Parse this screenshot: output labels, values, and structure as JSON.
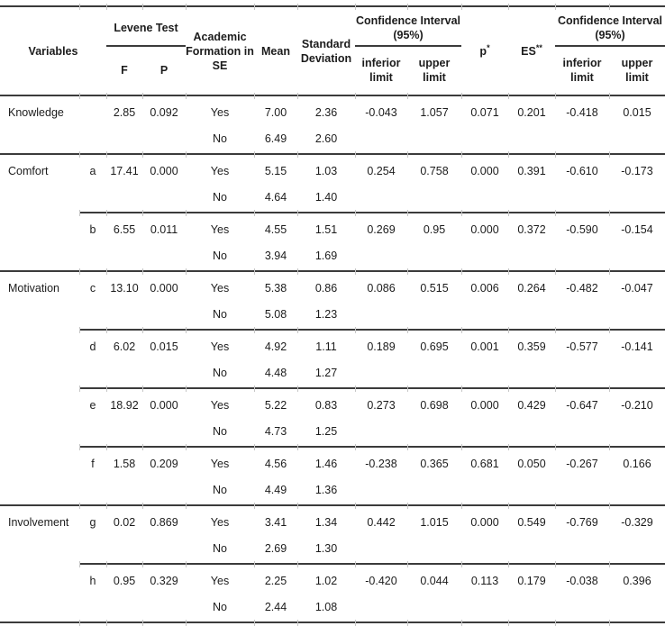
{
  "table": {
    "title": "statistical comparison table",
    "colors": {
      "rule_line": "#3b3b3b",
      "tick_line": "#c6c6c6",
      "text": "#1c1c1c",
      "background": "#ffffff"
    },
    "header": {
      "variables": "Variables",
      "levene_test": "Levene Test",
      "levene_f": "F",
      "levene_p": "P",
      "academic_formation": "Academic Formation in SE",
      "mean": "Mean",
      "standard_deviation": "Standard Deviation",
      "confidence_interval": "Confidence Interval (95%)",
      "inferior_limit": "inferior limit",
      "upper_limit": "upper limit",
      "p_label": "p",
      "p_sup": "*",
      "es_label": "ES",
      "es_sup": "**"
    },
    "groups": [
      {
        "separator": "full",
        "variable": "Knowledge",
        "letter": "",
        "levene_f": "2.85",
        "levene_p": "0.092",
        "ci95_1": [
          "-0.043",
          "1.057"
        ],
        "p": "0.071",
        "es": "0.201",
        "ci95_2": [
          "-0.418",
          "0.015"
        ],
        "rows": [
          {
            "formation": "Yes",
            "mean": "7.00",
            "sd": "2.36"
          },
          {
            "formation": "No",
            "mean": "6.49",
            "sd": "2.60"
          }
        ]
      },
      {
        "separator": "full",
        "variable": "Comfort",
        "letter": "a",
        "levene_f": "17.41",
        "levene_p": "0.000",
        "ci95_1": [
          "0.254",
          "0.758"
        ],
        "p": "0.000",
        "es": "0.391",
        "ci95_2": [
          "-0.610",
          "-0.173"
        ],
        "rows": [
          {
            "formation": "Yes",
            "mean": "5.15",
            "sd": "1.03"
          },
          {
            "formation": "No",
            "mean": "4.64",
            "sd": "1.40"
          }
        ]
      },
      {
        "separator": "partial",
        "variable": "",
        "letter": "b",
        "levene_f": "6.55",
        "levene_p": "0.011",
        "ci95_1": [
          "0.269",
          "0.95"
        ],
        "p": "0.000",
        "es": "0.372",
        "ci95_2": [
          "-0.590",
          "-0.154"
        ],
        "rows": [
          {
            "formation": "Yes",
            "mean": "4.55",
            "sd": "1.51"
          },
          {
            "formation": "No",
            "mean": "3.94",
            "sd": "1.69"
          }
        ]
      },
      {
        "separator": "full",
        "variable": "Motivation",
        "letter": "c",
        "levene_f": "13.10",
        "levene_p": "0.000",
        "ci95_1": [
          "0.086",
          "0.515"
        ],
        "p": "0.006",
        "es": "0.264",
        "ci95_2": [
          "-0.482",
          "-0.047"
        ],
        "rows": [
          {
            "formation": "Yes",
            "mean": "5.38",
            "sd": "0.86"
          },
          {
            "formation": "No",
            "mean": "5.08",
            "sd": "1.23"
          }
        ]
      },
      {
        "separator": "partial",
        "variable": "",
        "letter": "d",
        "levene_f": "6.02",
        "levene_p": "0.015",
        "ci95_1": [
          "0.189",
          "0.695"
        ],
        "p": "0.001",
        "es": "0.359",
        "ci95_2": [
          "-0.577",
          "-0.141"
        ],
        "rows": [
          {
            "formation": "Yes",
            "mean": "4.92",
            "sd": "1.11"
          },
          {
            "formation": "No",
            "mean": "4.48",
            "sd": "1.27"
          }
        ]
      },
      {
        "separator": "partial",
        "variable": "",
        "letter": "e",
        "levene_f": "18.92",
        "levene_p": "0.000",
        "ci95_1": [
          "0.273",
          "0.698"
        ],
        "p": "0.000",
        "es": "0.429",
        "ci95_2": [
          "-0.647",
          "-0.210"
        ],
        "rows": [
          {
            "formation": "Yes",
            "mean": "5.22",
            "sd": "0.83"
          },
          {
            "formation": "No",
            "mean": "4.73",
            "sd": "1.25"
          }
        ]
      },
      {
        "separator": "partial",
        "variable": "",
        "letter": "f",
        "levene_f": "1.58",
        "levene_p": "0.209",
        "ci95_1": [
          "-0.238",
          "0.365"
        ],
        "p": "0.681",
        "es": "0.050",
        "ci95_2": [
          "-0.267",
          "0.166"
        ],
        "rows": [
          {
            "formation": "Yes",
            "mean": "4.56",
            "sd": "1.46"
          },
          {
            "formation": "No",
            "mean": "4.49",
            "sd": "1.36"
          }
        ]
      },
      {
        "separator": "full",
        "variable": "Involvement",
        "letter": "g",
        "levene_f": "0.02",
        "levene_p": "0.869",
        "ci95_1": [
          "0.442",
          "1.015"
        ],
        "p": "0.000",
        "es": "0.549",
        "ci95_2": [
          "-0.769",
          "-0.329"
        ],
        "rows": [
          {
            "formation": "Yes",
            "mean": "3.41",
            "sd": "1.34"
          },
          {
            "formation": "No",
            "mean": "2.69",
            "sd": "1.30"
          }
        ]
      },
      {
        "separator": "partial",
        "variable": "",
        "letter": "h",
        "levene_f": "0.95",
        "levene_p": "0.329",
        "ci95_1": [
          "-0.420",
          "0.044"
        ],
        "p": "0.113",
        "es": "0.179",
        "ci95_2": [
          "-0.038",
          "0.396"
        ],
        "rows": [
          {
            "formation": "Yes",
            "mean": "2.25",
            "sd": "1.02"
          },
          {
            "formation": "No",
            "mean": "2.44",
            "sd": "1.08"
          }
        ]
      }
    ]
  }
}
